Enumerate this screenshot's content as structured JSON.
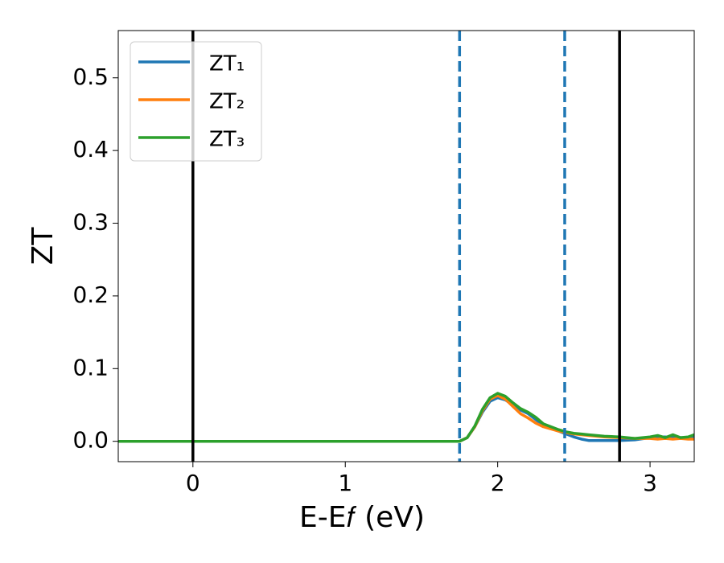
{
  "chart_data": {
    "type": "line",
    "x_label": "E-E𝑓 (eV)",
    "y_label": "ZT",
    "x": [
      -0.49,
      1.75,
      1.8,
      1.85,
      1.9,
      1.95,
      2.0,
      2.05,
      2.1,
      2.15,
      2.2,
      2.25,
      2.3,
      2.35,
      2.4,
      2.45,
      2.5,
      2.55,
      2.6,
      2.7,
      2.8,
      2.9,
      3.0,
      3.05,
      3.1,
      3.15,
      3.2,
      3.25,
      3.29
    ],
    "series": [
      {
        "name": "ZT₁",
        "color": "#1f77b4",
        "values": [
          0,
          0,
          0.005,
          0.02,
          0.04,
          0.055,
          0.06,
          0.057,
          0.05,
          0.043,
          0.038,
          0.03,
          0.022,
          0.018,
          0.014,
          0.01,
          0.006,
          0.003,
          0.001,
          0.001,
          0.001,
          0.002,
          0.005,
          0.006,
          0.006,
          0.005,
          0.005,
          0.005,
          0.006
        ]
      },
      {
        "name": "ZT₂",
        "color": "#ff7f0e",
        "values": [
          0,
          0,
          0.005,
          0.02,
          0.042,
          0.058,
          0.063,
          0.058,
          0.048,
          0.038,
          0.032,
          0.025,
          0.02,
          0.017,
          0.014,
          0.012,
          0.01,
          0.009,
          0.008,
          0.006,
          0.005,
          0.004,
          0.004,
          0.003,
          0.004,
          0.003,
          0.004,
          0.003,
          0.003
        ]
      },
      {
        "name": "ZT₃",
        "color": "#2ca02c",
        "values": [
          0,
          0,
          0.005,
          0.021,
          0.044,
          0.06,
          0.066,
          0.062,
          0.053,
          0.045,
          0.04,
          0.033,
          0.024,
          0.02,
          0.016,
          0.013,
          0.011,
          0.01,
          0.009,
          0.007,
          0.006,
          0.004,
          0.006,
          0.008,
          0.005,
          0.009,
          0.005,
          0.006,
          0.009
        ]
      }
    ],
    "vlines": [
      {
        "x": 0,
        "color": "#000000",
        "dashed": false
      },
      {
        "x": 1.75,
        "color": "#1f77b4",
        "dashed": true
      },
      {
        "x": 2.44,
        "color": "#1f77b4",
        "dashed": true
      },
      {
        "x": 2.8,
        "color": "#000000",
        "dashed": false
      }
    ],
    "xlim": [
      -0.49,
      3.29
    ],
    "xticks": [
      0,
      1,
      2,
      3
    ],
    "ylim": [
      -0.028,
      0.565
    ],
    "yticks": [
      {
        "value": 0,
        "label": "0.0"
      },
      {
        "value": 0.1,
        "label": "0.1"
      },
      {
        "value": 0.2,
        "label": "0.2"
      },
      {
        "value": 0.3,
        "label": "0.3"
      },
      {
        "value": 0.4,
        "label": "0.4"
      },
      {
        "value": 0.5,
        "label": "0.5"
      }
    ],
    "legend": "upper left"
  }
}
